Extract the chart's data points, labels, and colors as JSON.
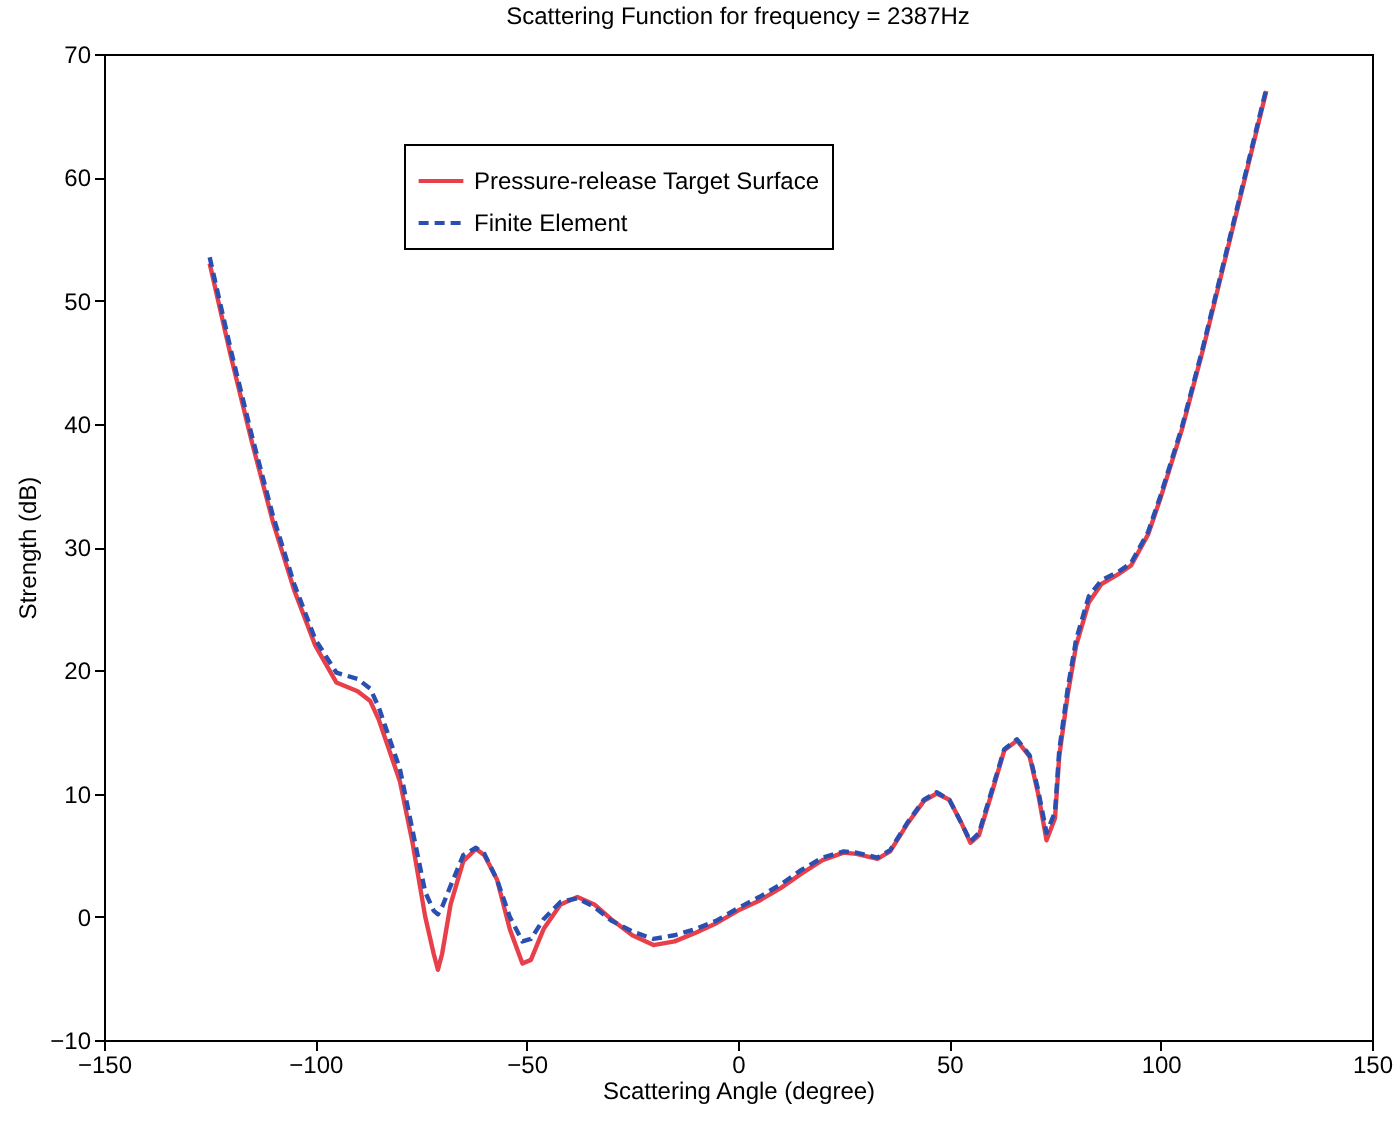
{
  "chart_data": {
    "type": "line",
    "title": "Scattering Function for frequency = 2387Hz",
    "xlabel": "Scattering Angle (degree)",
    "ylabel": "Strength (dB)",
    "xlim": [
      -150,
      150
    ],
    "xticks": [
      -150,
      -100,
      -50,
      0,
      50,
      100,
      150
    ],
    "ylim": [
      -10,
      70
    ],
    "yticks": [
      -10,
      0,
      10,
      20,
      30,
      40,
      50,
      60,
      70
    ],
    "grid": false,
    "legend": "top left",
    "marker": "none",
    "series": [
      {
        "name": "Pressure-release Target Surface",
        "color": "#e8404a",
        "line_style": "solid",
        "x": [
          -125,
          -120,
          -115,
          -110,
          -105,
          -100,
          -95,
          -90,
          -87,
          -85,
          -80,
          -77,
          -74,
          -72,
          -71,
          -70,
          -68,
          -65,
          -62,
          -60,
          -57,
          -54,
          -51,
          -49,
          -46,
          -42,
          -38,
          -34,
          -30,
          -25,
          -20,
          -15,
          -10,
          -5,
          0,
          5,
          10,
          15,
          20,
          25,
          28,
          33,
          36,
          40,
          44,
          47,
          50,
          53,
          55,
          57,
          60,
          63,
          66,
          69,
          71,
          73,
          75,
          76,
          78,
          80,
          83,
          86,
          90,
          93,
          97,
          100,
          105,
          110,
          115,
          120,
          125
        ],
        "values": [
          53,
          45.5,
          38.5,
          32,
          26.5,
          22,
          19,
          18.3,
          17.5,
          16,
          11,
          6,
          0,
          -3,
          -4.3,
          -3,
          1,
          4.5,
          5.5,
          5,
          3,
          -1,
          -3.8,
          -3.5,
          -1,
          1,
          1.6,
          1,
          -0.2,
          -1.5,
          -2.3,
          -2,
          -1.3,
          -0.5,
          0.5,
          1.3,
          2.3,
          3.5,
          4.6,
          5.2,
          5.1,
          4.7,
          5.3,
          7.5,
          9.4,
          10,
          9.5,
          7.5,
          6,
          6.6,
          10,
          13.5,
          14.3,
          13,
          10,
          6.2,
          8,
          13,
          18,
          22,
          25.5,
          27,
          27.8,
          28.5,
          31,
          34,
          39.5,
          46,
          53,
          60,
          67
        ]
      },
      {
        "name": "Finite Element",
        "color": "#2a4fb0",
        "line_style": "dashed",
        "x": [
          -125,
          -120,
          -115,
          -110,
          -105,
          -100,
          -95,
          -90,
          -87,
          -85,
          -80,
          -77,
          -74,
          -72,
          -71,
          -70,
          -68,
          -65,
          -62,
          -60,
          -57,
          -54,
          -51,
          -49,
          -46,
          -42,
          -38,
          -34,
          -30,
          -25,
          -20,
          -15,
          -10,
          -5,
          0,
          5,
          10,
          15,
          20,
          25,
          28,
          33,
          36,
          40,
          44,
          47,
          50,
          53,
          55,
          57,
          60,
          63,
          66,
          69,
          71,
          73,
          75,
          76,
          78,
          80,
          83,
          86,
          90,
          93,
          97,
          100,
          105,
          110,
          115,
          120,
          125
        ],
        "values": [
          53.5,
          46,
          39,
          32.5,
          27,
          22.5,
          19.8,
          19.3,
          18.5,
          17,
          12,
          7,
          2,
          0.5,
          0.2,
          0.8,
          2.5,
          5,
          5.6,
          5.1,
          3,
          0,
          -2,
          -1.8,
          -0.2,
          1.2,
          1.5,
          0.8,
          -0.3,
          -1.2,
          -1.8,
          -1.5,
          -1,
          -0.3,
          0.7,
          1.6,
          2.6,
          3.8,
          4.8,
          5.3,
          5.2,
          4.8,
          5.4,
          7.6,
          9.5,
          10.1,
          9.5,
          7.5,
          6.1,
          6.8,
          10.2,
          13.6,
          14.4,
          13.1,
          10.3,
          6.8,
          8.5,
          13.5,
          18.5,
          22.5,
          26,
          27.3,
          28,
          28.7,
          31.2,
          34.2,
          39.7,
          46.2,
          53.2,
          60.2,
          67.2
        ]
      }
    ]
  }
}
